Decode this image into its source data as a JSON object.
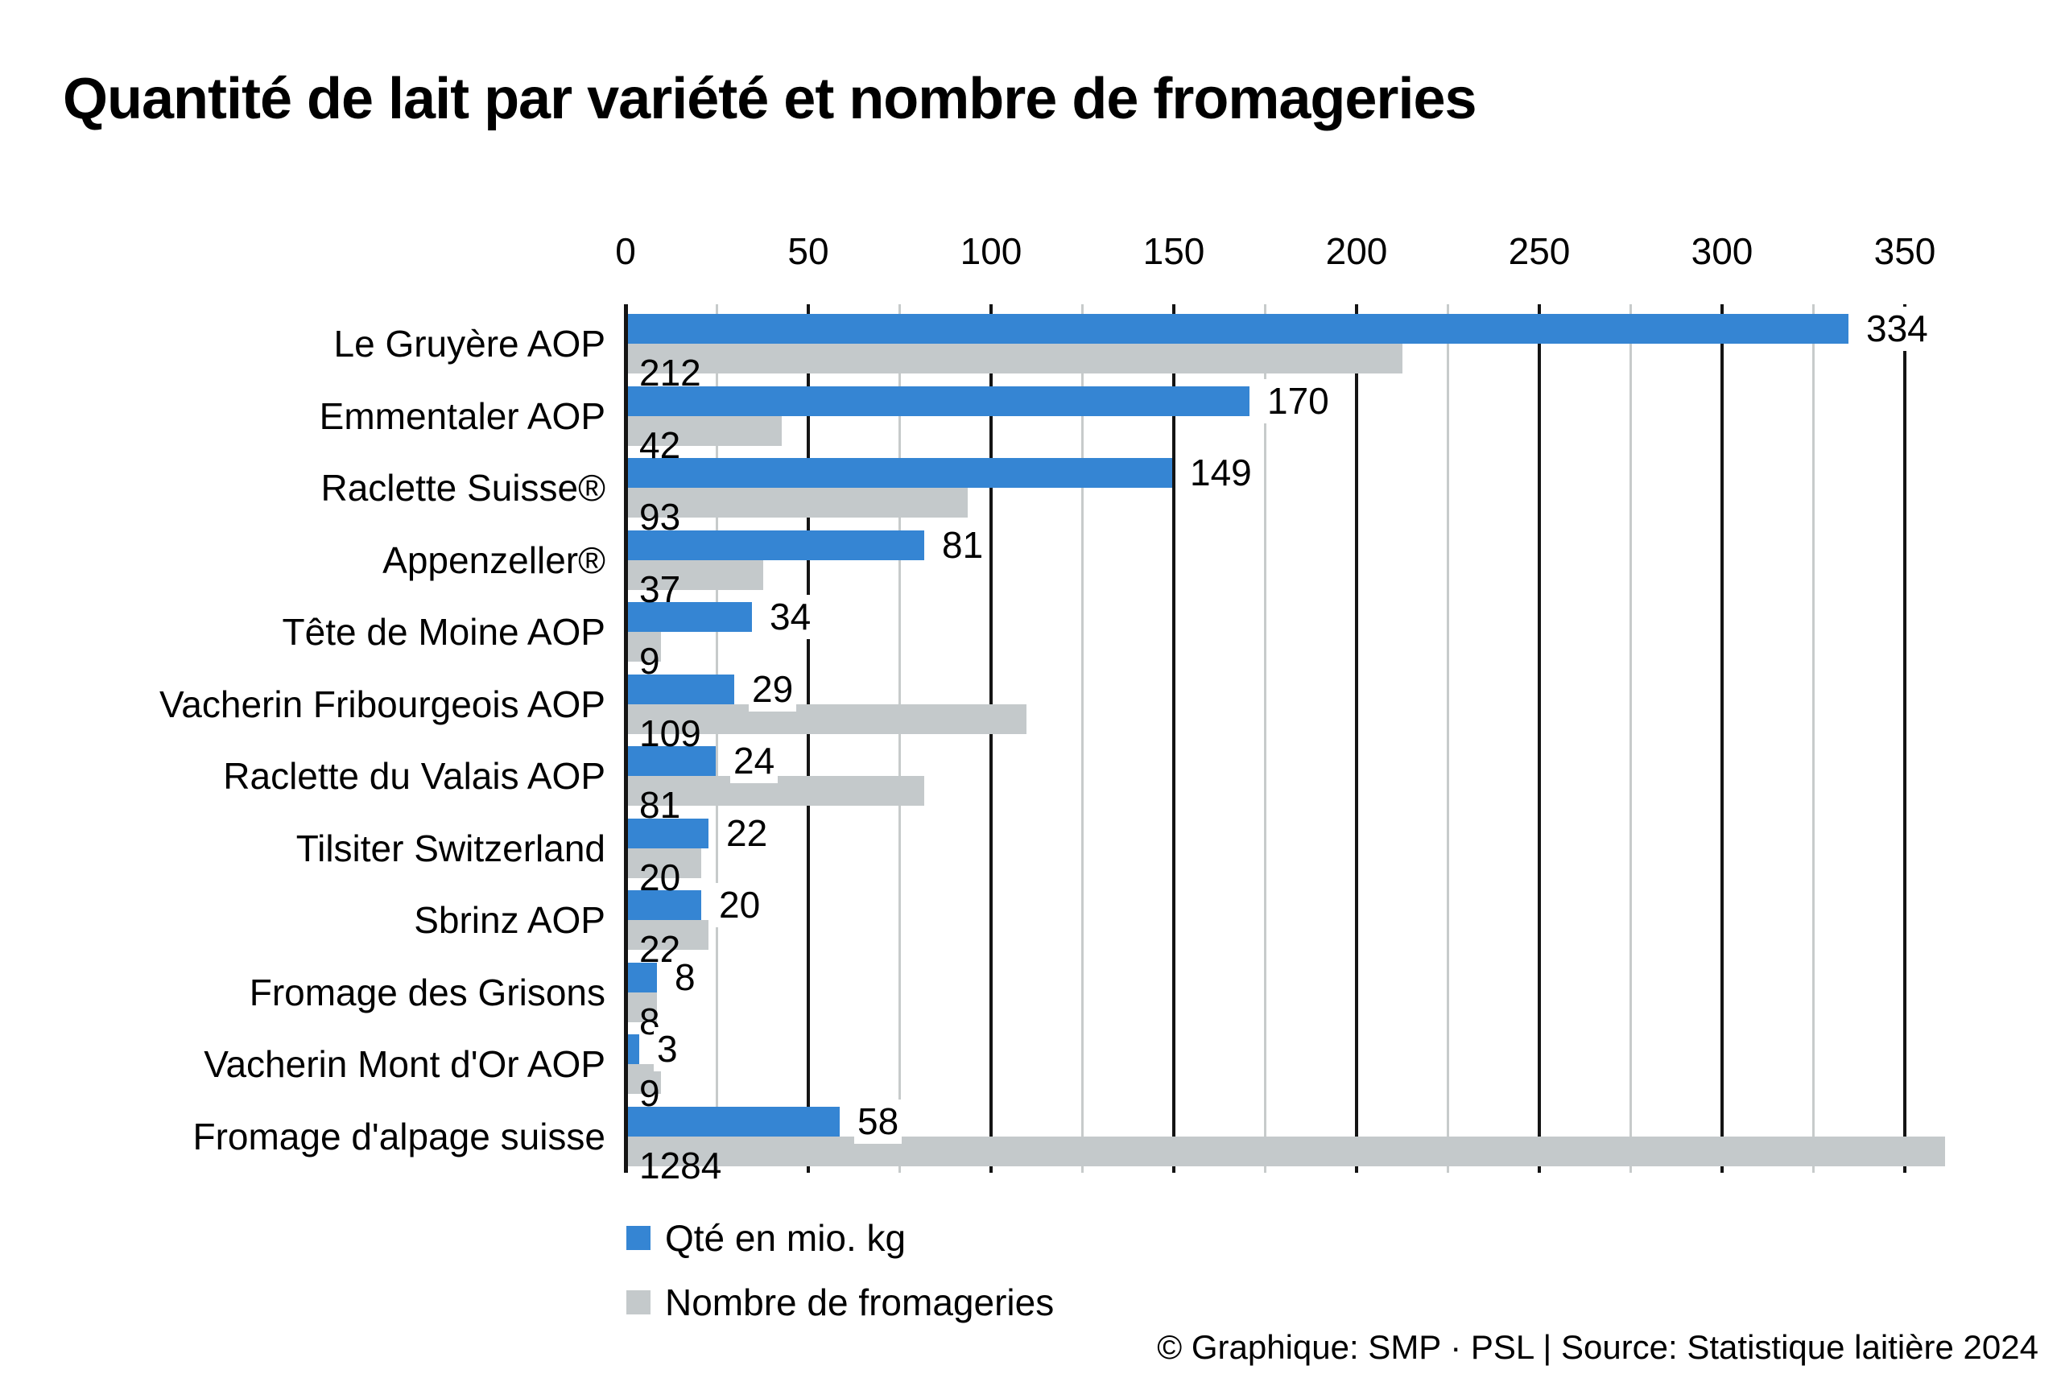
{
  "chart_data": {
    "type": "bar",
    "orientation": "horizontal",
    "title": "Quantité de lait par variété et nombre de fromageries",
    "categories": [
      "Le Gruyère AOP",
      "Emmentaler AOP",
      "Raclette Suisse®",
      "Appenzeller®",
      "Tête de Moine AOP",
      "Vacherin Fribourgeois AOP",
      "Raclette du Valais AOP",
      "Tilsiter Switzerland",
      "Sbrinz AOP",
      "Fromage des Grisons",
      "Vacherin Mont d'Or AOP",
      "Fromage d'alpage suisse"
    ],
    "series": [
      {
        "name": "Qté en mio. kg",
        "color": "#3585d3",
        "values": [
          334,
          170,
          149,
          81,
          34,
          29,
          24,
          22,
          20,
          8,
          3,
          58
        ],
        "label_position": "outside-end"
      },
      {
        "name": "Nombre de fromageries",
        "color": "#c4c9cb",
        "values": [
          212,
          42,
          93,
          37,
          9,
          109,
          81,
          20,
          22,
          8,
          9,
          1284
        ],
        "label_position": "inside-start",
        "note": "bar for 1284 is clipped at the right plot edge"
      }
    ],
    "xlabel": "",
    "ylabel": "",
    "xlim": [
      0,
      361
    ],
    "x_ticks_major": [
      0,
      50,
      100,
      150,
      200,
      250,
      300,
      350
    ],
    "x_minor_step": 25,
    "axis_position": "top",
    "grid": "vertical; major ticks black, minor ticks light gray",
    "legend_position": "bottom-left"
  },
  "legend": {
    "items": [
      {
        "label": "Qté en mio. kg",
        "color": "#3585d3"
      },
      {
        "label": "Nombre de fromageries",
        "color": "#c4c9cb"
      }
    ]
  },
  "footer": {
    "credit": "© Graphique: SMP · PSL | Source: Statistique laitière 2024"
  },
  "colors": {
    "qty_bar": "#3585d3",
    "fromageries_bar": "#c4c9cb",
    "major_gridline": "#141414",
    "minor_gridline": "#c7cbcb",
    "text": "#000000",
    "background": "#ffffff"
  }
}
